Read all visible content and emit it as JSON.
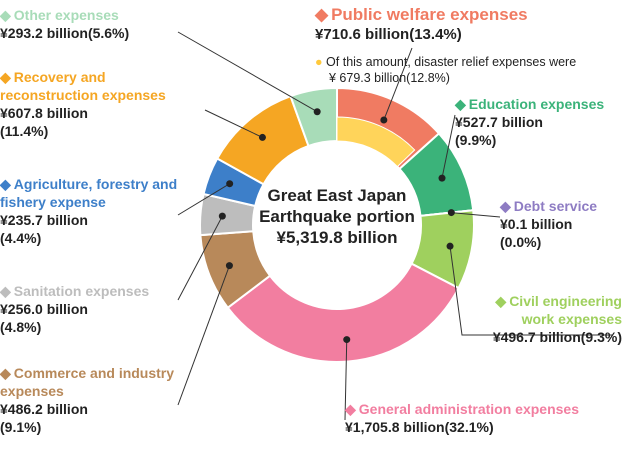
{
  "chart_data": {
    "type": "donut",
    "center_title": "Great East Japan Earthquake portion",
    "total_label": "¥5,319.8 billion",
    "categories": [
      "Public welfare expenses",
      "Education expenses",
      "Debt service",
      "Civil engineering work expenses",
      "General administration expenses",
      "Commerce and industry expenses",
      "Sanitation expenses",
      "Agriculture, forestry and fishery expense",
      "Recovery and reconstruction expenses",
      "Other expenses"
    ],
    "values": [
      710.6,
      527.7,
      0.1,
      496.7,
      1705.8,
      486.2,
      256.0,
      235.7,
      607.8,
      293.2
    ],
    "value_labels": [
      "¥710.6 billion",
      "¥527.7 billion",
      "¥0.1 billion",
      "¥496.7 billion",
      "¥1,705.8 billion",
      "¥486.2 billion",
      "¥256.0 billion",
      "¥235.7 billion",
      "¥607.8 billion",
      "¥293.2 billion"
    ],
    "shares": [
      13.4,
      9.9,
      0.0,
      9.3,
      32.1,
      9.1,
      4.8,
      4.4,
      11.4,
      5.6
    ],
    "share_labels": [
      "(13.4%)",
      "(9.9%)",
      "(0.0%)",
      "(9.3%)",
      "(32.1%)",
      "(9.1%)",
      "(4.8%)",
      "(4.4%)",
      "(11.4%)",
      "(5.6%)"
    ],
    "colors": [
      "#f07b62",
      "#3bb37a",
      "#8e7cc3",
      "#9fd05e",
      "#f27ea0",
      "#b8895a",
      "#bdbdbd",
      "#3d7fc9",
      "#f5a623",
      "#a8dcb8"
    ],
    "sub_series": {
      "name": "Of this amount, disaster relief expenses were",
      "value": 679.3,
      "value_label": "¥ 679.3 billion",
      "share": 12.8,
      "share_label": "(12.8%)",
      "color": "#ffd45a"
    }
  }
}
